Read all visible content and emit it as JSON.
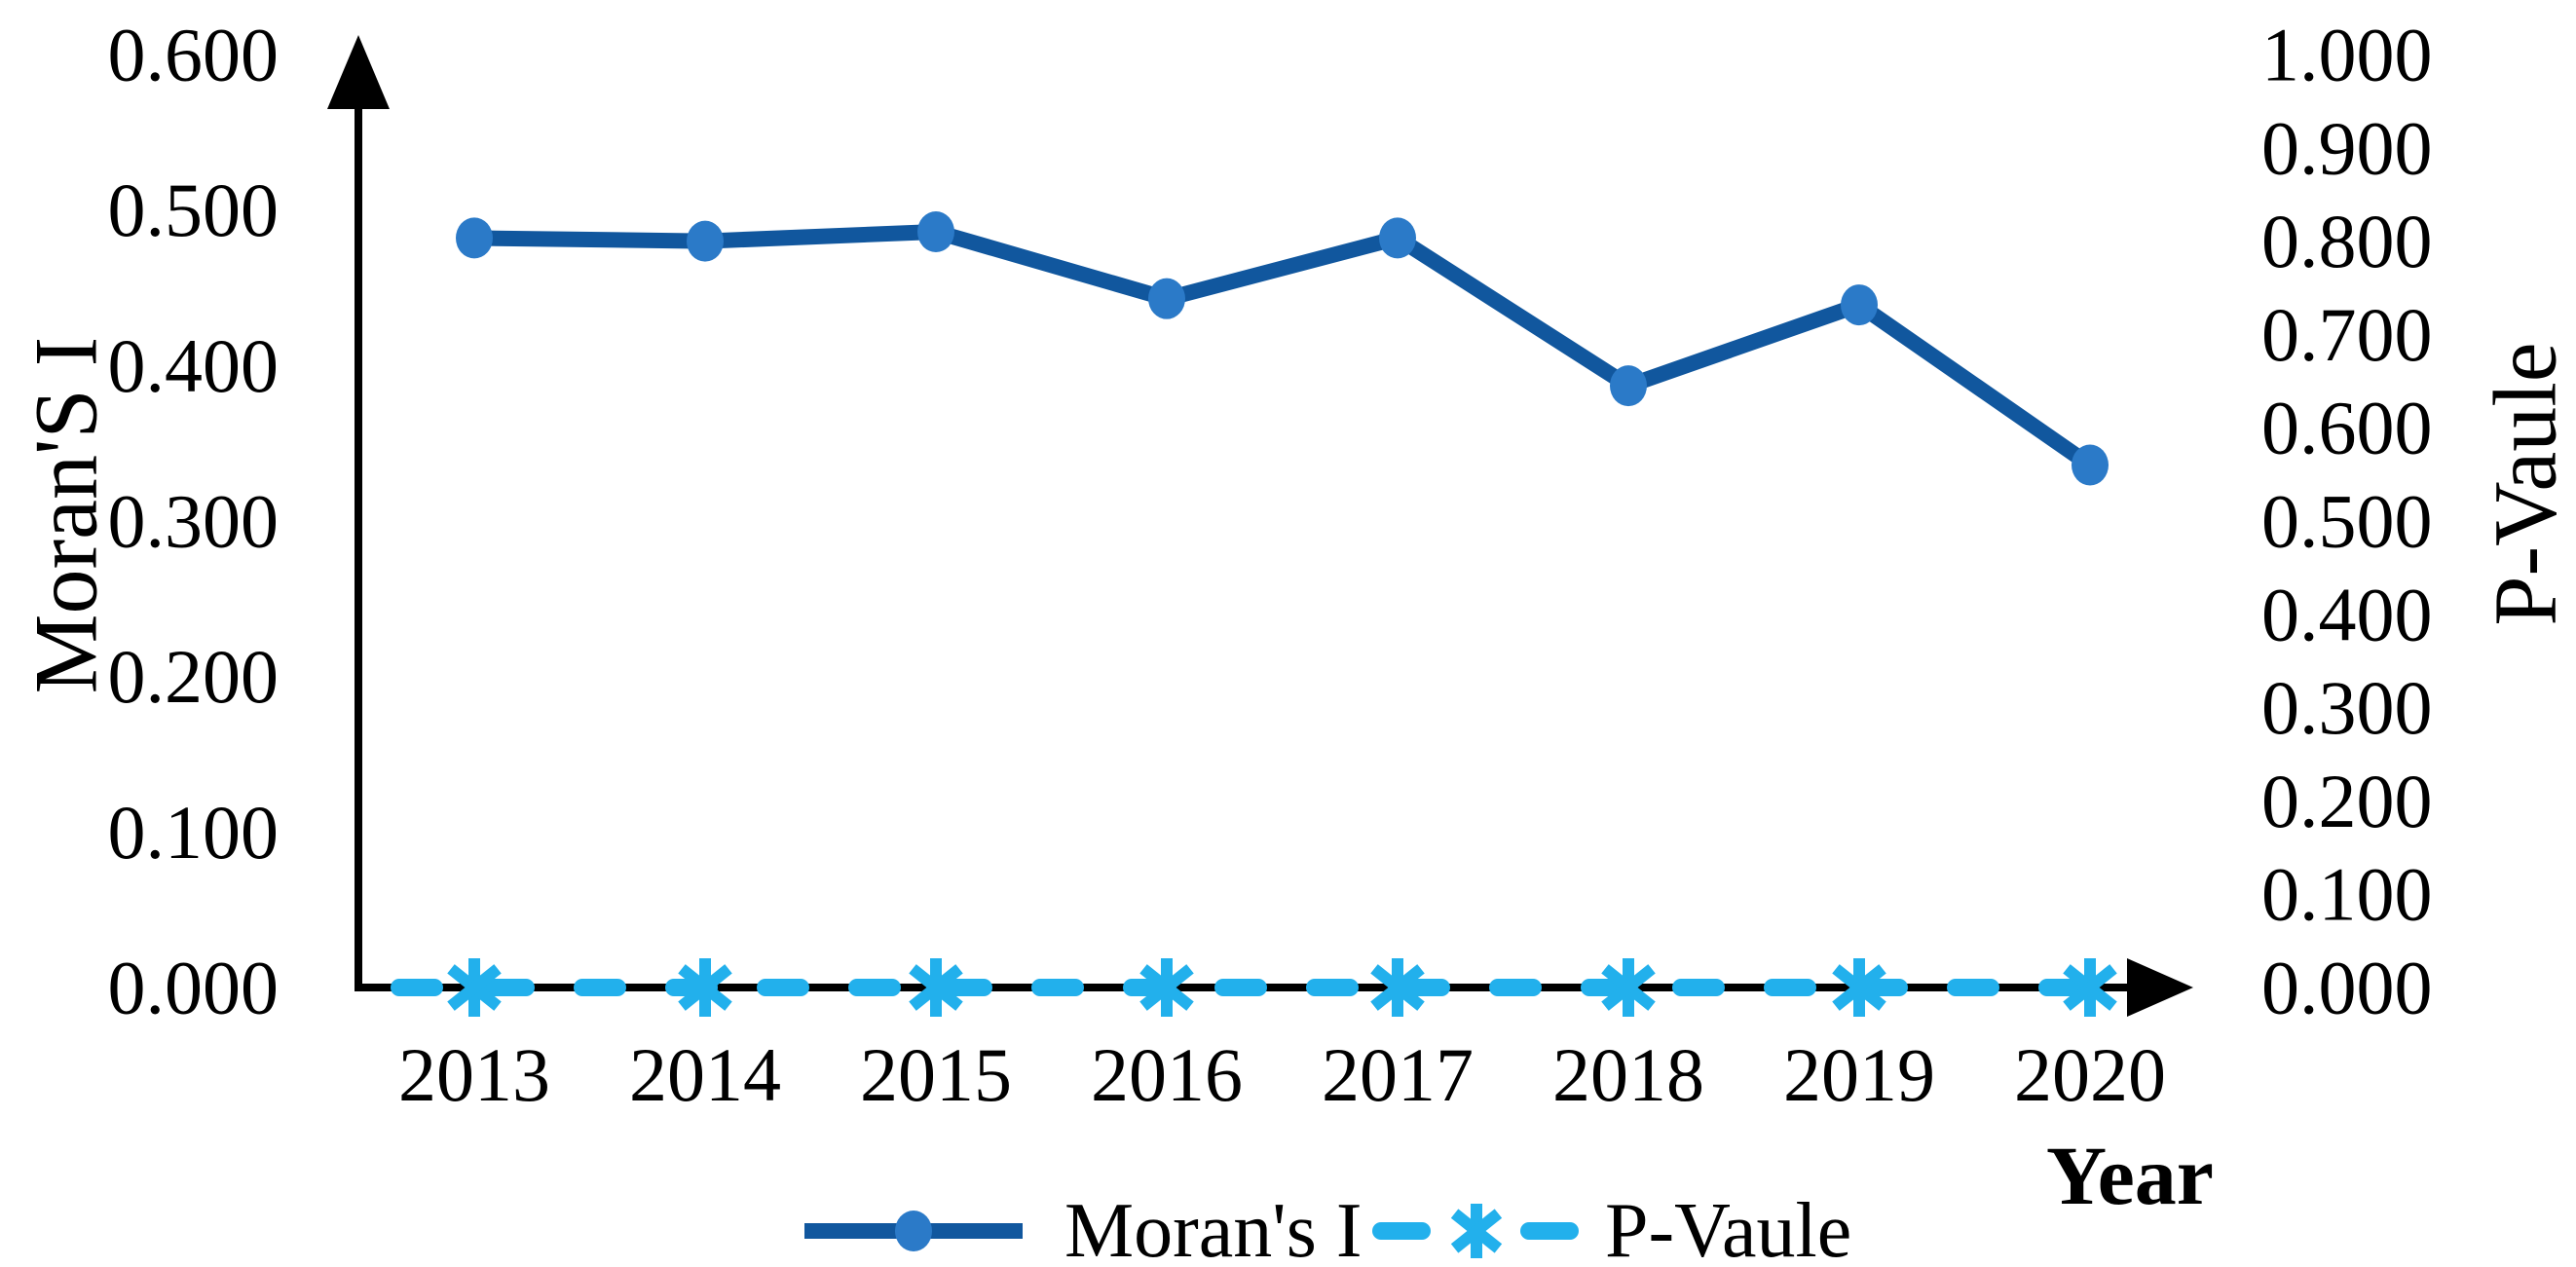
{
  "chart_data": {
    "type": "line",
    "title": "",
    "categories": [
      "2013",
      "2014",
      "2015",
      "2016",
      "2017",
      "2018",
      "2019",
      "2020"
    ],
    "series": [
      {
        "name": "Moran's I",
        "axis": "left",
        "line_style": "solid",
        "marker": "circle",
        "color": "#11579E",
        "marker_color": "#2B7AC8",
        "values": [
          0.482,
          0.48,
          0.486,
          0.443,
          0.482,
          0.387,
          0.439,
          0.336
        ]
      },
      {
        "name": "P-Vaule",
        "axis": "right",
        "line_style": "dashed",
        "marker": "asterisk",
        "color": "#22B0EC",
        "marker_color": "#22B0EC",
        "values": [
          0.0,
          0.0,
          0.0,
          0.0,
          0.0,
          0.0,
          0.0,
          0.0
        ]
      }
    ],
    "left_axis": {
      "title": "Moran'S I",
      "min": 0.0,
      "max": 0.6,
      "ticks": [
        {
          "value": 0.0,
          "label": "0.000"
        },
        {
          "value": 0.1,
          "label": "0.100"
        },
        {
          "value": 0.2,
          "label": "0.200"
        },
        {
          "value": 0.3,
          "label": "0.300"
        },
        {
          "value": 0.4,
          "label": "0.400"
        },
        {
          "value": 0.5,
          "label": "0.500"
        },
        {
          "value": 0.6,
          "label": "0.600"
        }
      ]
    },
    "right_axis": {
      "title": "P-Vaule",
      "min": 0.0,
      "max": 1.0,
      "ticks": [
        {
          "value": 0.0,
          "label": "0.000"
        },
        {
          "value": 0.1,
          "label": "0.100"
        },
        {
          "value": 0.2,
          "label": "0.200"
        },
        {
          "value": 0.3,
          "label": "0.300"
        },
        {
          "value": 0.4,
          "label": "0.400"
        },
        {
          "value": 0.5,
          "label": "0.500"
        },
        {
          "value": 0.6,
          "label": "0.600"
        },
        {
          "value": 0.7,
          "label": "0.700"
        },
        {
          "value": 0.8,
          "label": "0.800"
        },
        {
          "value": 0.9,
          "label": "0.900"
        },
        {
          "value": 1.0,
          "label": "1.000"
        }
      ]
    },
    "x_axis": {
      "title": "Year",
      "labels": [
        "2013",
        "2014",
        "2015",
        "2016",
        "2017",
        "2018",
        "2019",
        "2020"
      ]
    },
    "legend": {
      "position": "bottom",
      "entries": [
        "Moran's I",
        "P-Vaule"
      ]
    },
    "grid": false,
    "background": "#FFFFFF",
    "axis_color": "#000000"
  }
}
